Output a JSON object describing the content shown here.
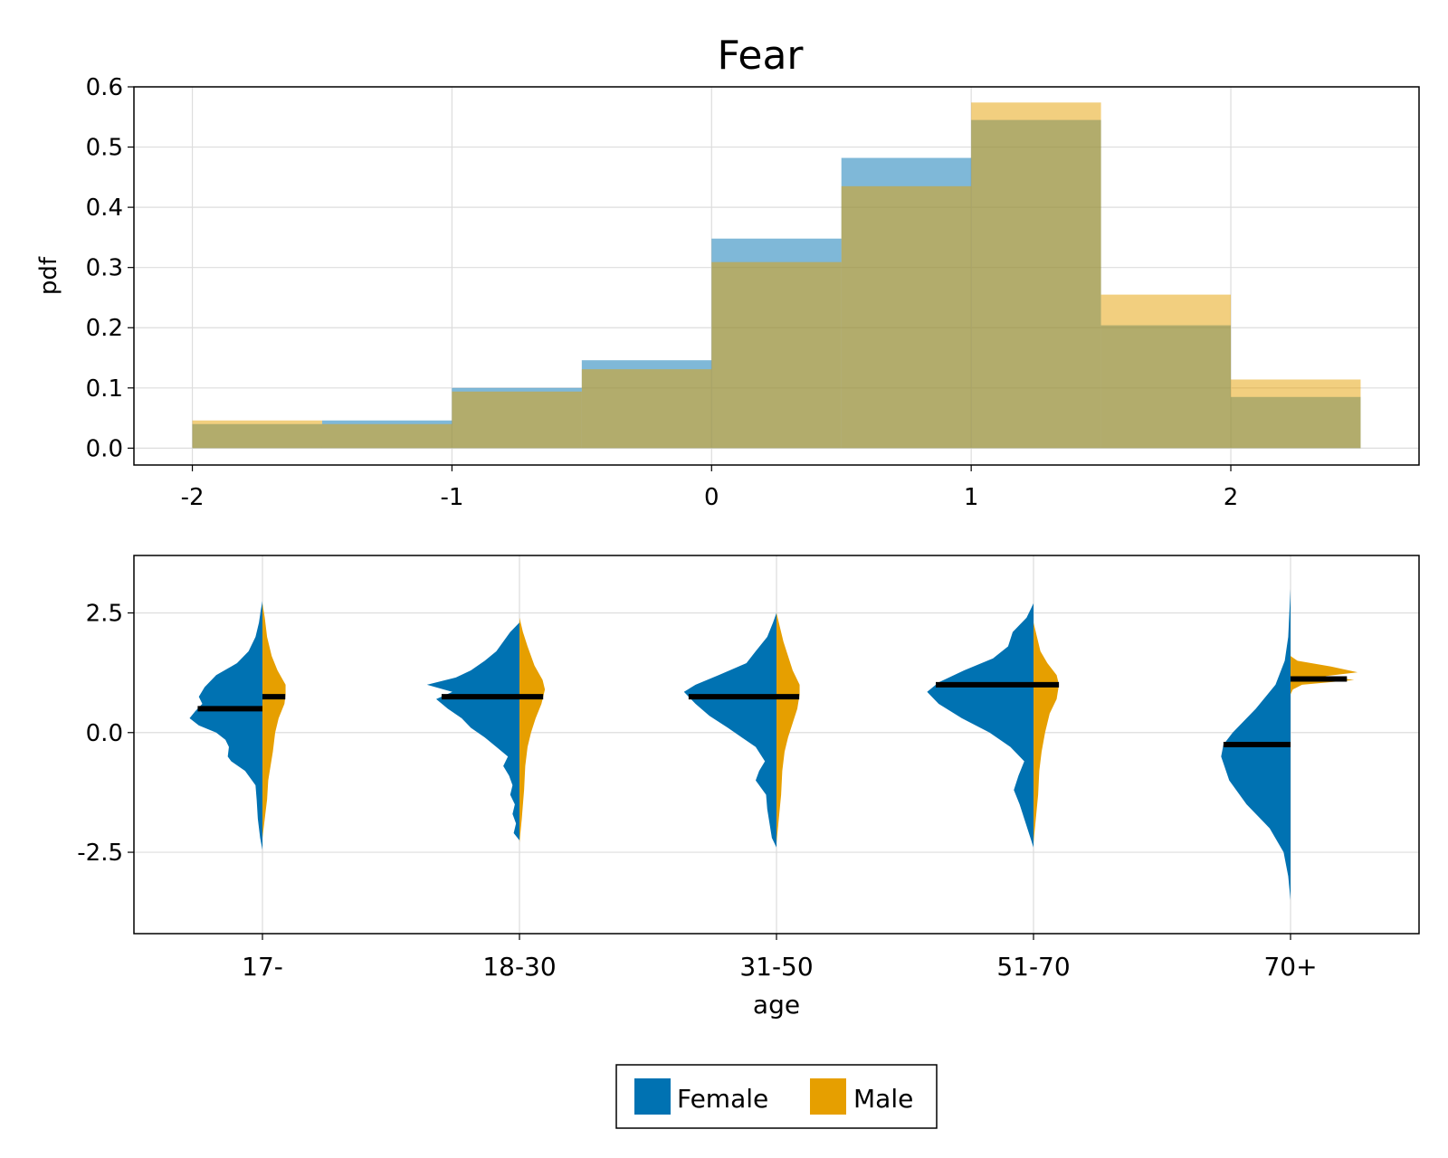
{
  "title": "Fear",
  "colors": {
    "female": "#0072B2",
    "male": "#E69F00"
  },
  "legend": {
    "items": [
      {
        "label": "Female",
        "color": "#0072B2"
      },
      {
        "label": "Male",
        "color": "#E69F00"
      }
    ]
  },
  "chart_data": [
    {
      "type": "histogram",
      "title": "Fear",
      "xlabel": "",
      "ylabel": "pdf",
      "xlim": [
        -2.225,
        2.725
      ],
      "ylim": [
        -0.028,
        0.6
      ],
      "xticks": [
        "-2",
        "-1",
        "0",
        "1",
        "2"
      ],
      "xtick_values": [
        -2,
        -1,
        0,
        1,
        2
      ],
      "yticks": [
        "0.0",
        "0.1",
        "0.2",
        "0.3",
        "0.4",
        "0.5",
        "0.6"
      ],
      "ytick_values": [
        0,
        0.1,
        0.2,
        0.3,
        0.4,
        0.5,
        0.6
      ],
      "bins": [
        -2,
        -1.5,
        -1,
        -0.5,
        0,
        0.5,
        1,
        1.5,
        2,
        2.5
      ],
      "grid": true,
      "series": [
        {
          "name": "Female",
          "values": [
            0.04,
            0.046,
            0.1,
            0.146,
            0.348,
            0.482,
            0.545,
            0.204,
            0.085
          ]
        },
        {
          "name": "Male",
          "values": [
            0.046,
            0.04,
            0.094,
            0.131,
            0.309,
            0.435,
            0.574,
            0.255,
            0.114
          ]
        }
      ]
    },
    {
      "type": "violin",
      "xlabel": "age",
      "ylabel": "",
      "ylim": [
        -4.2,
        3.7
      ],
      "yticks": [
        "-2.5",
        "0.0",
        "2.5"
      ],
      "ytick_values": [
        -2.5,
        0,
        2.5
      ],
      "categories": [
        "17-",
        "18-30",
        "31-50",
        "51-70",
        "70+"
      ],
      "grid": true,
      "series": [
        {
          "name": "Female",
          "medians": [
            0.5,
            0.75,
            0.75,
            1.0,
            -0.25
          ],
          "densities": [
            [
              [
                -2.45,
                0
              ],
              [
                -2.2,
                0.02
              ],
              [
                -1.8,
                0.04
              ],
              [
                -1.4,
                0.05
              ],
              [
                -1.1,
                0.06
              ],
              [
                -0.8,
                0.15
              ],
              [
                -0.6,
                0.27
              ],
              [
                -0.5,
                0.3
              ],
              [
                -0.3,
                0.29
              ],
              [
                -0.15,
                0.32
              ],
              [
                0.0,
                0.4
              ],
              [
                0.15,
                0.55
              ],
              [
                0.3,
                0.63
              ],
              [
                0.45,
                0.58
              ],
              [
                0.6,
                0.52
              ],
              [
                0.75,
                0.55
              ],
              [
                0.95,
                0.5
              ],
              [
                1.2,
                0.4
              ],
              [
                1.45,
                0.22
              ],
              [
                1.7,
                0.12
              ],
              [
                2.0,
                0.06
              ],
              [
                2.3,
                0.03
              ],
              [
                2.55,
                0.015
              ],
              [
                2.75,
                0
              ]
            ],
            [
              [
                -2.25,
                0
              ],
              [
                -2.1,
                0.05
              ],
              [
                -1.9,
                0.03
              ],
              [
                -1.7,
                0.06
              ],
              [
                -1.5,
                0.04
              ],
              [
                -1.3,
                0.08
              ],
              [
                -1.1,
                0.06
              ],
              [
                -0.9,
                0.09
              ],
              [
                -0.7,
                0.14
              ],
              [
                -0.5,
                0.1
              ],
              [
                -0.3,
                0.2
              ],
              [
                -0.1,
                0.3
              ],
              [
                0.1,
                0.42
              ],
              [
                0.3,
                0.5
              ],
              [
                0.5,
                0.62
              ],
              [
                0.7,
                0.72
              ],
              [
                0.85,
                0.58
              ],
              [
                1.0,
                0.8
              ],
              [
                1.15,
                0.55
              ],
              [
                1.3,
                0.42
              ],
              [
                1.5,
                0.3
              ],
              [
                1.7,
                0.2
              ],
              [
                1.9,
                0.14
              ],
              [
                2.1,
                0.08
              ],
              [
                2.3,
                0
              ]
            ],
            [
              [
                -2.4,
                0
              ],
              [
                -2.2,
                0.04
              ],
              [
                -1.9,
                0.06
              ],
              [
                -1.6,
                0.08
              ],
              [
                -1.3,
                0.09
              ],
              [
                -1.0,
                0.18
              ],
              [
                -0.8,
                0.15
              ],
              [
                -0.6,
                0.1
              ],
              [
                -0.3,
                0.18
              ],
              [
                -0.1,
                0.3
              ],
              [
                0.1,
                0.42
              ],
              [
                0.35,
                0.58
              ],
              [
                0.6,
                0.7
              ],
              [
                0.85,
                0.8
              ],
              [
                1.0,
                0.7
              ],
              [
                1.2,
                0.5
              ],
              [
                1.45,
                0.26
              ],
              [
                1.7,
                0.18
              ],
              [
                2.0,
                0.08
              ],
              [
                2.3,
                0.03
              ],
              [
                2.5,
                0
              ]
            ],
            [
              [
                -2.4,
                0
              ],
              [
                -2.1,
                0.04
              ],
              [
                -1.8,
                0.08
              ],
              [
                -1.5,
                0.12
              ],
              [
                -1.2,
                0.17
              ],
              [
                -0.9,
                0.13
              ],
              [
                -0.6,
                0.08
              ],
              [
                -0.3,
                0.2
              ],
              [
                0.0,
                0.38
              ],
              [
                0.3,
                0.62
              ],
              [
                0.6,
                0.82
              ],
              [
                0.85,
                0.92
              ],
              [
                1.05,
                0.82
              ],
              [
                1.3,
                0.6
              ],
              [
                1.55,
                0.35
              ],
              [
                1.8,
                0.22
              ],
              [
                2.1,
                0.18
              ],
              [
                2.4,
                0.06
              ],
              [
                2.7,
                0
              ]
            ],
            [
              [
                -3.5,
                0
              ],
              [
                -3.0,
                0.02
              ],
              [
                -2.5,
                0.06
              ],
              [
                -2.0,
                0.18
              ],
              [
                -1.5,
                0.38
              ],
              [
                -1.0,
                0.53
              ],
              [
                -0.5,
                0.6
              ],
              [
                -0.25,
                0.58
              ],
              [
                0.0,
                0.5
              ],
              [
                0.5,
                0.3
              ],
              [
                1.0,
                0.13
              ],
              [
                1.5,
                0.05
              ],
              [
                2.0,
                0.02
              ],
              [
                2.5,
                0.01
              ],
              [
                3.0,
                0
              ]
            ]
          ]
        },
        {
          "name": "Male",
          "medians": [
            0.75,
            0.75,
            0.75,
            1.0,
            1.12
          ],
          "densities": [
            [
              [
                -2.2,
                0
              ],
              [
                -1.8,
                0.02
              ],
              [
                -1.4,
                0.04
              ],
              [
                -1.0,
                0.05
              ],
              [
                -0.7,
                0.07
              ],
              [
                -0.4,
                0.09
              ],
              [
                0.0,
                0.11
              ],
              [
                0.3,
                0.14
              ],
              [
                0.6,
                0.19
              ],
              [
                0.8,
                0.2
              ],
              [
                1.0,
                0.2
              ],
              [
                1.3,
                0.13
              ],
              [
                1.6,
                0.08
              ],
              [
                2.0,
                0.04
              ],
              [
                2.4,
                0.02
              ],
              [
                2.7,
                0
              ]
            ],
            [
              [
                -2.3,
                0
              ],
              [
                -1.8,
                0.02
              ],
              [
                -1.2,
                0.04
              ],
              [
                -0.7,
                0.05
              ],
              [
                -0.3,
                0.07
              ],
              [
                0.0,
                0.1
              ],
              [
                0.3,
                0.14
              ],
              [
                0.6,
                0.19
              ],
              [
                0.9,
                0.22
              ],
              [
                1.1,
                0.2
              ],
              [
                1.4,
                0.13
              ],
              [
                1.8,
                0.07
              ],
              [
                2.1,
                0.03
              ],
              [
                2.4,
                0
              ]
            ],
            [
              [
                -2.3,
                0
              ],
              [
                -1.8,
                0.02
              ],
              [
                -1.3,
                0.04
              ],
              [
                -0.8,
                0.05
              ],
              [
                -0.4,
                0.07
              ],
              [
                -0.1,
                0.1
              ],
              [
                0.2,
                0.14
              ],
              [
                0.5,
                0.18
              ],
              [
                0.8,
                0.2
              ],
              [
                1.0,
                0.2
              ],
              [
                1.3,
                0.14
              ],
              [
                1.6,
                0.1
              ],
              [
                1.9,
                0.06
              ],
              [
                2.2,
                0.03
              ],
              [
                2.5,
                0
              ]
            ],
            [
              [
                -2.3,
                0
              ],
              [
                -1.8,
                0.02
              ],
              [
                -1.3,
                0.04
              ],
              [
                -0.8,
                0.05
              ],
              [
                -0.4,
                0.07
              ],
              [
                0.0,
                0.1
              ],
              [
                0.4,
                0.14
              ],
              [
                0.7,
                0.2
              ],
              [
                1.0,
                0.22
              ],
              [
                1.2,
                0.2
              ],
              [
                1.45,
                0.12
              ],
              [
                1.7,
                0.06
              ],
              [
                2.0,
                0.03
              ],
              [
                2.3,
                0
              ]
            ],
            [
              [
                0.8,
                0
              ],
              [
                0.9,
                0.02
              ],
              [
                1.0,
                0.1
              ],
              [
                1.1,
                0.55
              ],
              [
                1.18,
                0.3
              ],
              [
                1.26,
                0.58
              ],
              [
                1.38,
                0.35
              ],
              [
                1.5,
                0.06
              ],
              [
                1.6,
                0
              ]
            ]
          ]
        }
      ]
    }
  ]
}
